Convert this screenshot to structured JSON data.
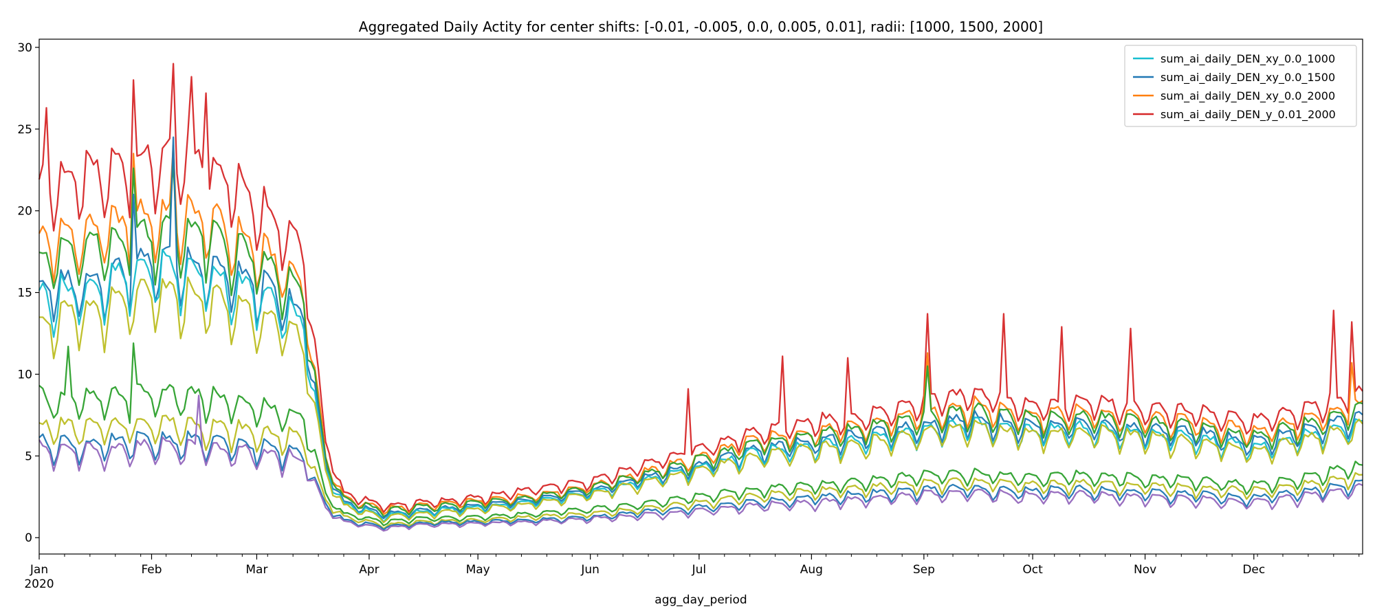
{
  "chart_data": {
    "type": "line",
    "title": "Aggregated Daily Actity for center shifts: [-0.01, -0.005, 0.0, 0.005, 0.01], radii: [1000, 1500, 2000]",
    "xlabel": "agg_day_period",
    "ylabel": "",
    "x_range": [
      "2020-01-01",
      "2020-12-31"
    ],
    "ylim": [
      -1.0,
      30.5
    ],
    "yticks": [
      0,
      5,
      10,
      15,
      20,
      25,
      30
    ],
    "xticks": [
      {
        "date": "2020-01-01",
        "label": "Jan",
        "sublabel": "2020"
      },
      {
        "date": "2020-02-01",
        "label": "Feb"
      },
      {
        "date": "2020-03-01",
        "label": "Mar"
      },
      {
        "date": "2020-04-01",
        "label": "Apr"
      },
      {
        "date": "2020-05-01",
        "label": "May"
      },
      {
        "date": "2020-06-01",
        "label": "Jun"
      },
      {
        "date": "2020-07-01",
        "label": "Jul"
      },
      {
        "date": "2020-08-01",
        "label": "Aug"
      },
      {
        "date": "2020-09-01",
        "label": "Sep"
      },
      {
        "date": "2020-10-01",
        "label": "Oct"
      },
      {
        "date": "2020-11-01",
        "label": "Nov"
      },
      {
        "date": "2020-12-01",
        "label": "Dec"
      }
    ],
    "grid": false,
    "legend_position": "top-right",
    "legend": [
      {
        "label": "sum_ai_daily_DEN_xy_0.0_1000",
        "color": "#17becf"
      },
      {
        "label": "sum_ai_daily_DEN_xy_0.0_1500",
        "color": "#1f77b4"
      },
      {
        "label": "sum_ai_daily_DEN_xy_0.0_2000",
        "color": "#ff7f0e"
      },
      {
        "label": "sum_ai_daily_DEN_y_0.01_2000",
        "color": "#d62728"
      }
    ],
    "series_profile_dates": [
      "2020-01-01",
      "2020-01-15",
      "2020-02-01",
      "2020-02-15",
      "2020-03-01",
      "2020-03-10",
      "2020-03-14",
      "2020-03-20",
      "2020-03-25",
      "2020-04-05",
      "2020-04-15",
      "2020-05-01",
      "2020-05-15",
      "2020-06-01",
      "2020-06-15",
      "2020-07-01",
      "2020-07-15",
      "2020-08-01",
      "2020-08-15",
      "2020-09-01",
      "2020-09-15",
      "2020-10-01",
      "2020-10-15",
      "2020-11-01",
      "2020-11-15",
      "2020-12-01",
      "2020-12-15",
      "2020-12-31"
    ],
    "series": [
      {
        "color": "#d62728",
        "values": [
          22,
          22.5,
          23.5,
          23.5,
          21,
          19,
          18,
          6,
          2.8,
          2,
          2.2,
          2.5,
          3,
          3.5,
          4.5,
          5.5,
          6.5,
          7.2,
          7.5,
          8.5,
          9,
          8.2,
          8.5,
          8,
          7.8,
          7.2,
          8,
          9
        ],
        "amplitude": 3.2,
        "spikes": [
          [
            "2020-02-07",
            29
          ],
          [
            "2020-01-27",
            28
          ],
          [
            "2020-01-03",
            26.3
          ],
          [
            "2020-02-12",
            28.2
          ],
          [
            "2020-02-16",
            27.2
          ],
          [
            "2020-09-02",
            13.7
          ],
          [
            "2020-09-23",
            13.7
          ],
          [
            "2020-10-28",
            12.8
          ],
          [
            "2020-12-23",
            13.9
          ],
          [
            "2020-12-28",
            13.2
          ],
          [
            "2020-10-09",
            12.9
          ],
          [
            "2020-08-11",
            11
          ],
          [
            "2020-07-24",
            11.1
          ],
          [
            "2020-06-28",
            9.1
          ]
        ]
      },
      {
        "color": "#ff7f0e",
        "values": [
          18.5,
          19,
          20,
          20,
          18,
          16.5,
          15.5,
          5,
          2.5,
          1.8,
          2,
          2.3,
          2.6,
          3.2,
          4,
          5,
          6,
          6.6,
          6.9,
          7.8,
          8.2,
          7.6,
          7.8,
          7.4,
          7.2,
          6.6,
          7.3,
          8.3
        ],
        "amplitude": 2.8,
        "spikes": [
          [
            "2020-02-07",
            24
          ],
          [
            "2020-01-27",
            23.5
          ],
          [
            "2020-09-02",
            11.3
          ],
          [
            "2020-12-28",
            10.7
          ]
        ]
      },
      {
        "color": "#2ca02c",
        "values": [
          17.5,
          18,
          19,
          19,
          17.3,
          15.8,
          14.8,
          4.8,
          2.4,
          1.7,
          1.9,
          2.2,
          2.5,
          3.1,
          3.9,
          4.8,
          5.8,
          6.4,
          6.7,
          7.5,
          7.9,
          7.3,
          7.5,
          7.1,
          6.9,
          6.3,
          7,
          8
        ],
        "amplitude": 2.8,
        "spikes": [
          [
            "2020-02-07",
            23
          ],
          [
            "2020-01-27",
            22.6
          ],
          [
            "2020-09-02",
            10.5
          ]
        ]
      },
      {
        "color": "#1f77b4",
        "values": [
          15.5,
          16,
          17.2,
          17,
          15.8,
          14.5,
          13.8,
          4.5,
          2.2,
          1.5,
          1.7,
          2,
          2.3,
          2.9,
          3.7,
          4.5,
          5.4,
          6,
          6.3,
          7,
          7.4,
          6.9,
          7.1,
          6.7,
          6.5,
          5.9,
          6.6,
          7.6
        ],
        "amplitude": 2.5,
        "spikes": [
          [
            "2020-02-07",
            24.5
          ],
          [
            "2020-01-27",
            21
          ]
        ]
      },
      {
        "color": "#17becf",
        "values": [
          15,
          15.5,
          16.8,
          16.5,
          15.3,
          14,
          13.3,
          4.3,
          2.1,
          1.4,
          1.6,
          1.9,
          2.2,
          2.8,
          3.5,
          4.3,
          5.2,
          5.7,
          6,
          6.7,
          7,
          6.6,
          6.8,
          6.4,
          6.2,
          5.6,
          6.3,
          7.2
        ],
        "amplitude": 2.5,
        "spikes": []
      },
      {
        "color": "#bcbd22",
        "values": [
          13.5,
          14,
          15.2,
          15,
          14,
          12.8,
          12.2,
          4,
          2,
          1.3,
          1.5,
          1.8,
          2.1,
          2.7,
          3.4,
          4.2,
          5,
          5.5,
          5.8,
          6.5,
          6.8,
          6.4,
          6.6,
          6.2,
          6,
          5.4,
          6.1,
          7
        ],
        "amplitude": 2.4,
        "spikes": []
      },
      {
        "color": "#2ca02c",
        "values": [
          8.8,
          8.6,
          9,
          8.8,
          8.2,
          7.7,
          7.5,
          2.8,
          1.5,
          1.0,
          1.2,
          1.3,
          1.5,
          1.8,
          2.1,
          2.6,
          3,
          3.3,
          3.5,
          3.9,
          4,
          3.8,
          3.9,
          3.7,
          3.6,
          3.3,
          3.8,
          4.5
        ],
        "amplitude": 1.6,
        "spikes": [
          [
            "2020-01-09",
            11.7
          ],
          [
            "2020-01-27",
            11.9
          ]
        ]
      },
      {
        "color": "#bcbd22",
        "values": [
          7,
          6.9,
          7.2,
          7,
          6.6,
          6.3,
          6.1,
          2.4,
          1.3,
          0.8,
          1.0,
          1.1,
          1.3,
          1.5,
          1.8,
          2.2,
          2.6,
          2.9,
          3.1,
          3.4,
          3.5,
          3.3,
          3.4,
          3.2,
          3.1,
          2.9,
          3.3,
          3.9
        ],
        "amplitude": 1.4,
        "spikes": []
      },
      {
        "color": "#1f77b4",
        "values": [
          6,
          5.8,
          6.1,
          6,
          5.7,
          5.4,
          5.2,
          2.1,
          1.1,
          0.7,
          0.9,
          1.0,
          1.1,
          1.3,
          1.6,
          1.9,
          2.2,
          2.5,
          2.7,
          3,
          3.1,
          2.9,
          3,
          2.8,
          2.7,
          2.5,
          2.9,
          3.4
        ],
        "amplitude": 1.3,
        "spikes": []
      },
      {
        "color": "#9467bd",
        "values": [
          5.6,
          5.4,
          5.7,
          5.6,
          5.3,
          5.0,
          4.9,
          1.9,
          1.0,
          0.6,
          0.8,
          0.9,
          1.0,
          1.2,
          1.4,
          1.7,
          2.0,
          2.2,
          2.4,
          2.7,
          2.8,
          2.6,
          2.7,
          2.5,
          2.4,
          2.2,
          2.6,
          3.1
        ],
        "amplitude": 1.3,
        "spikes": [
          [
            "2020-02-14",
            8.7
          ]
        ]
      }
    ]
  }
}
